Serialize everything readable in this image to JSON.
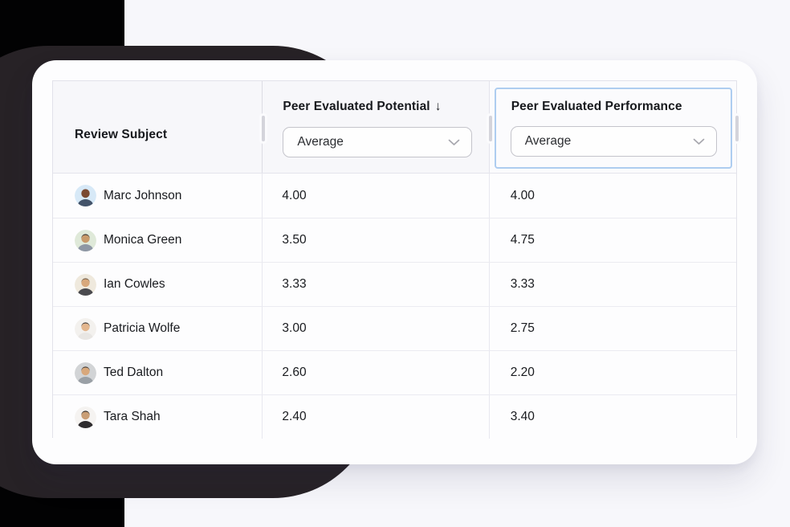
{
  "page": {
    "background_color": "#f7f7fb",
    "corner_color": "#020203",
    "accent_shape_color": "#272226",
    "card_color": "#fdfdfe",
    "selection_border_color": "#aecdf0"
  },
  "table": {
    "columns": [
      {
        "label": "Review Subject"
      },
      {
        "label": "Peer Evaluated Potential",
        "sort_indicator": "↓",
        "aggregation": {
          "value": "Average"
        }
      },
      {
        "label": "Peer Evaluated Performance",
        "aggregation": {
          "value": "Average"
        },
        "selected": true
      }
    ],
    "rows": [
      {
        "name": "Marc Johnson",
        "potential": "4.00",
        "performance": "4.00",
        "avatar": {
          "bg": "#d7e9f7",
          "skin": "#7a4a32",
          "hair": "#7a4a32",
          "shirt": "#44546a"
        }
      },
      {
        "name": "Monica Green",
        "potential": "3.50",
        "performance": "4.75",
        "avatar": {
          "bg": "#dfe9d9",
          "skin": "#c89a6b",
          "hair": "#2e2a28",
          "shirt": "#8e97a4"
        }
      },
      {
        "name": "Ian Cowles",
        "potential": "3.33",
        "performance": "3.33",
        "avatar": {
          "bg": "#efe9dd",
          "skin": "#d8a87c",
          "hair": "#6b5948",
          "shirt": "#4a4a4f"
        }
      },
      {
        "name": "Patricia Wolfe",
        "potential": "3.00",
        "performance": "2.75",
        "avatar": {
          "bg": "#f3f1ee",
          "skin": "#e3b68e",
          "hair": "#33302e",
          "shirt": "#e8e6e3"
        }
      },
      {
        "name": "Ted Dalton",
        "potential": "2.60",
        "performance": "2.20",
        "avatar": {
          "bg": "#d2d4d6",
          "skin": "#d8a87c",
          "hair": "#3a332e",
          "shirt": "#9aa0a6"
        }
      },
      {
        "name": "Tara Shah",
        "potential": "2.40",
        "performance": "3.40",
        "avatar": {
          "bg": "#f5f3f1",
          "skin": "#c99e76",
          "hair": "#1e1c1b",
          "shirt": "#2e2c2e"
        }
      }
    ]
  }
}
